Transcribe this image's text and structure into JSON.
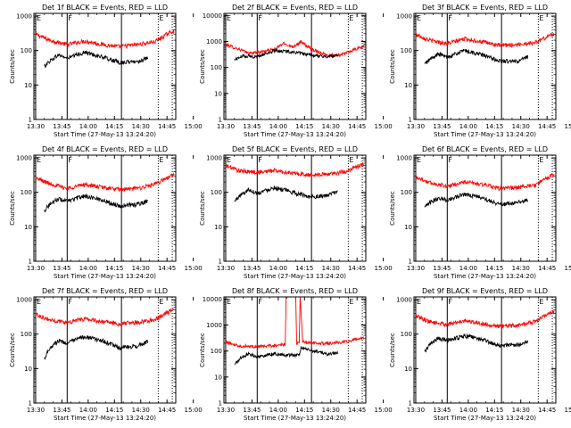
{
  "chart_data": [
    {
      "type": "line",
      "title": "Det 1f BLACK = Events, RED = LLD",
      "xlabel": "Start Time (27-May-13 13:24:20)",
      "ylabel": "Counts/sec",
      "x_ticks": [
        "13:30",
        "13:45",
        "14:00",
        "14:15",
        "14:30",
        "14:45",
        "15:00"
      ],
      "xlim_min": [
        21,
        102
      ],
      "y_ticks": [
        "1",
        "10",
        "100",
        "1000"
      ],
      "ylim": [
        1,
        1200
      ],
      "log_y": true,
      "markers": [
        {
          "label": "E",
          "t": 22,
          "style": "solid"
        },
        {
          "label": "F",
          "t": 40,
          "style": "solid"
        },
        {
          "label": "",
          "t": 71,
          "style": "solid"
        },
        {
          "label": "E",
          "t": 92,
          "style": "dotted"
        },
        {
          "label": "",
          "t": 100,
          "style": "dotted"
        }
      ],
      "series": [
        {
          "color": "#ff0000",
          "x": [
            22,
            30,
            40,
            50,
            60,
            70,
            80,
            90,
            97,
            101
          ],
          "values": [
            300,
            200,
            150,
            190,
            150,
            130,
            150,
            180,
            300,
            380
          ]
        },
        {
          "color": "#000000",
          "x": [
            27,
            30,
            35,
            40,
            50,
            60,
            70,
            80,
            86
          ],
          "values": [
            35,
            50,
            75,
            60,
            90,
            65,
            45,
            48,
            60
          ]
        }
      ]
    },
    {
      "type": "line",
      "title": "Det 2f BLACK = Events, RED = LLD",
      "xlabel": "Start Time (27-May-13 13:24:20)",
      "ylabel": "Counts/sec",
      "x_ticks": [
        "13:30",
        "13:45",
        "14:00",
        "14:15",
        "14:30",
        "14:45",
        "15:00"
      ],
      "xlim_min": [
        21,
        102
      ],
      "y_ticks": [
        "1",
        "10",
        "100",
        "1000",
        "10000"
      ],
      "ylim": [
        1,
        12000
      ],
      "log_y": true,
      "markers": [
        {
          "label": "E",
          "t": 22,
          "style": "solid"
        },
        {
          "label": "F",
          "t": 40,
          "style": "solid"
        },
        {
          "label": "",
          "t": 71,
          "style": "solid"
        },
        {
          "label": "E",
          "t": 92,
          "style": "dotted"
        },
        {
          "label": "",
          "t": 100,
          "style": "dotted"
        }
      ],
      "series": [
        {
          "color": "#ff0000",
          "x": [
            22,
            30,
            35,
            40,
            50,
            55,
            60,
            65,
            70,
            75,
            80,
            88,
            96,
            101
          ],
          "values": [
            750,
            500,
            350,
            380,
            500,
            850,
            620,
            950,
            560,
            400,
            300,
            300,
            500,
            650
          ]
        },
        {
          "color": "#000000",
          "x": [
            27,
            32,
            40,
            50,
            60,
            70,
            80,
            86
          ],
          "values": [
            200,
            280,
            260,
            450,
            400,
            300,
            260,
            300
          ]
        }
      ]
    },
    {
      "type": "line",
      "title": "Det 3f BLACK = Events, RED = LLD",
      "xlabel": "Start Time (27-May-13 13:24:20)",
      "ylabel": "Counts/sec",
      "x_ticks": [
        "13:30",
        "13:45",
        "14:00",
        "14:15",
        "14:30",
        "14:45",
        "15:00"
      ],
      "xlim_min": [
        21,
        102
      ],
      "y_ticks": [
        "1",
        "10",
        "100",
        "1000"
      ],
      "ylim": [
        1,
        1200
      ],
      "log_y": true,
      "markers": [
        {
          "label": "E",
          "t": 22,
          "style": "solid"
        },
        {
          "label": "F",
          "t": 40,
          "style": "solid"
        },
        {
          "label": "",
          "t": 71,
          "style": "solid"
        },
        {
          "label": "E",
          "t": 92,
          "style": "dotted"
        },
        {
          "label": "",
          "t": 100,
          "style": "dotted"
        }
      ],
      "series": [
        {
          "color": "#ff0000",
          "x": [
            22,
            30,
            40,
            50,
            60,
            70,
            80,
            90,
            97,
            101
          ],
          "values": [
            300,
            200,
            160,
            220,
            180,
            140,
            150,
            170,
            250,
            320
          ]
        },
        {
          "color": "#000000",
          "x": [
            27,
            30,
            35,
            40,
            50,
            60,
            70,
            80,
            86
          ],
          "values": [
            40,
            55,
            80,
            65,
            100,
            75,
            50,
            48,
            65
          ]
        }
      ]
    },
    {
      "type": "line",
      "title": "Det 4f BLACK = Events, RED = LLD",
      "xlabel": "Start Time (27-May-13 13:24:20)",
      "ylabel": "Counts/sec",
      "x_ticks": [
        "13:30",
        "13:45",
        "14:00",
        "14:15",
        "14:30",
        "14:45",
        "15:00"
      ],
      "xlim_min": [
        21,
        102
      ],
      "y_ticks": [
        "1",
        "10",
        "100",
        "1000"
      ],
      "ylim": [
        1,
        1200
      ],
      "log_y": true,
      "markers": [
        {
          "label": "E",
          "t": 22,
          "style": "solid"
        },
        {
          "label": "F",
          "t": 40,
          "style": "solid"
        },
        {
          "label": "",
          "t": 71,
          "style": "solid"
        },
        {
          "label": "E",
          "t": 92,
          "style": "dotted"
        },
        {
          "label": "",
          "t": 100,
          "style": "dotted"
        }
      ],
      "series": [
        {
          "color": "#ff0000",
          "x": [
            22,
            30,
            40,
            50,
            60,
            70,
            80,
            90,
            97,
            101
          ],
          "values": [
            260,
            180,
            130,
            170,
            140,
            120,
            130,
            170,
            260,
            330
          ]
        },
        {
          "color": "#000000",
          "x": [
            27,
            30,
            35,
            40,
            50,
            60,
            70,
            80,
            86
          ],
          "values": [
            30,
            45,
            65,
            55,
            80,
            60,
            40,
            45,
            55
          ]
        }
      ]
    },
    {
      "type": "line",
      "title": "Det 5f BLACK = Events, RED = LLD",
      "xlabel": "Start Time (27-May-13 13:24:20)",
      "ylabel": "Counts/sec",
      "x_ticks": [
        "13:30",
        "13:45",
        "14:00",
        "14:15",
        "14:30",
        "14:45",
        "15:00"
      ],
      "xlim_min": [
        21,
        102
      ],
      "y_ticks": [
        "1",
        "10",
        "100",
        "1000"
      ],
      "ylim": [
        1,
        1200
      ],
      "log_y": true,
      "markers": [
        {
          "label": "E",
          "t": 22,
          "style": "solid"
        },
        {
          "label": "F",
          "t": 40,
          "style": "solid"
        },
        {
          "label": "",
          "t": 71,
          "style": "solid"
        },
        {
          "label": "E",
          "t": 92,
          "style": "dotted"
        },
        {
          "label": "",
          "t": 100,
          "style": "dotted"
        }
      ],
      "series": [
        {
          "color": "#ff0000",
          "x": [
            22,
            30,
            40,
            50,
            60,
            70,
            80,
            90,
            97,
            101
          ],
          "values": [
            600,
            420,
            380,
            430,
            360,
            320,
            340,
            400,
            560,
            650
          ]
        },
        {
          "color": "#000000",
          "x": [
            27,
            30,
            35,
            40,
            50,
            60,
            70,
            80,
            86
          ],
          "values": [
            55,
            80,
            120,
            95,
            140,
            100,
            75,
            80,
            110
          ]
        }
      ]
    },
    {
      "type": "line",
      "title": "Det 6f BLACK = Events, RED = LLD",
      "xlabel": "Start Time (27-May-13 13:24:20)",
      "ylabel": "Counts/sec",
      "x_ticks": [
        "13:30",
        "13:45",
        "14:00",
        "14:15",
        "14:30",
        "14:45",
        "15:00"
      ],
      "xlim_min": [
        21,
        102
      ],
      "y_ticks": [
        "1",
        "10",
        "100",
        "1000"
      ],
      "ylim": [
        1,
        1200
      ],
      "log_y": true,
      "markers": [
        {
          "label": "E",
          "t": 22,
          "style": "solid"
        },
        {
          "label": "F",
          "t": 40,
          "style": "solid"
        },
        {
          "label": "",
          "t": 71,
          "style": "solid"
        },
        {
          "label": "E",
          "t": 92,
          "style": "dotted"
        },
        {
          "label": "",
          "t": 100,
          "style": "dotted"
        }
      ],
      "series": [
        {
          "color": "#ff0000",
          "x": [
            22,
            30,
            40,
            50,
            60,
            70,
            80,
            90,
            97,
            101
          ],
          "values": [
            280,
            190,
            150,
            200,
            170,
            130,
            140,
            160,
            260,
            340
          ]
        },
        {
          "color": "#000000",
          "x": [
            27,
            30,
            35,
            40,
            50,
            60,
            70,
            80,
            86
          ],
          "values": [
            35,
            50,
            70,
            60,
            90,
            70,
            45,
            50,
            60
          ]
        }
      ]
    },
    {
      "type": "line",
      "title": "Det 7f BLACK = Events, RED = LLD",
      "xlabel": "Start Time (27-May-13 13:24:20)",
      "ylabel": "Counts/sec",
      "x_ticks": [
        "13:30",
        "13:45",
        "14:00",
        "14:15",
        "14:30",
        "14:45",
        "15:00"
      ],
      "xlim_min": [
        21,
        102
      ],
      "y_ticks": [
        "1",
        "10",
        "100",
        "1000"
      ],
      "ylim": [
        1,
        1200
      ],
      "log_y": true,
      "markers": [
        {
          "label": "E",
          "t": 22,
          "style": "solid"
        },
        {
          "label": "F",
          "t": 40,
          "style": "solid"
        },
        {
          "label": "",
          "t": 71,
          "style": "solid"
        },
        {
          "label": "E",
          "t": 92,
          "style": "dotted"
        },
        {
          "label": "",
          "t": 100,
          "style": "dotted"
        }
      ],
      "series": [
        {
          "color": "#ff0000",
          "x": [
            22,
            30,
            40,
            50,
            60,
            70,
            80,
            90,
            97,
            101
          ],
          "values": [
            380,
            260,
            220,
            280,
            230,
            200,
            220,
            260,
            420,
            500
          ]
        },
        {
          "color": "#000000",
          "x": [
            27,
            30,
            35,
            40,
            50,
            60,
            70,
            80,
            86
          ],
          "values": [
            20,
            40,
            65,
            55,
            85,
            65,
            40,
            45,
            60
          ]
        }
      ]
    },
    {
      "type": "line",
      "title": "Det 8f BLACK = Events, RED = LLD",
      "xlabel": "Start Time (27-May-13 13:24:20)",
      "ylabel": "Counts/sec",
      "x_ticks": [
        "13:30",
        "13:45",
        "14:00",
        "14:15",
        "14:30",
        "14:45",
        "15:00"
      ],
      "xlim_min": [
        21,
        102
      ],
      "y_ticks": [
        "1",
        "10",
        "100",
        "1000",
        "10000"
      ],
      "ylim": [
        1,
        12000
      ],
      "log_y": true,
      "markers": [
        {
          "label": "E",
          "t": 22,
          "style": "solid"
        },
        {
          "label": "F",
          "t": 40,
          "style": "solid"
        },
        {
          "label": "",
          "t": 71,
          "style": "solid"
        },
        {
          "label": "E",
          "t": 92,
          "style": "dotted"
        },
        {
          "label": "",
          "t": 100,
          "style": "dotted"
        }
      ],
      "series": [
        {
          "color": "#ff0000",
          "x": [
            22,
            30,
            40,
            50,
            56,
            56.5,
            62,
            62.5,
            64,
            64.5,
            66,
            70,
            80,
            90,
            97,
            101
          ],
          "values": [
            220,
            160,
            150,
            160,
            180,
            12000,
            12000,
            190,
            210,
            12000,
            220,
            210,
            200,
            220,
            300,
            330
          ]
        },
        {
          "color": "#000000",
          "x": [
            27,
            30,
            35,
            40,
            50,
            55,
            64,
            65,
            70,
            80,
            86
          ],
          "values": [
            30,
            50,
            80,
            60,
            80,
            70,
            70,
            130,
            110,
            75,
            90
          ]
        }
      ]
    },
    {
      "type": "line",
      "title": "Det 9f BLACK = Events, RED = LLD",
      "xlabel": "Start Time (27-May-13 13:24:20)",
      "ylabel": "Counts/sec",
      "x_ticks": [
        "13:30",
        "13:45",
        "14:00",
        "14:15",
        "14:30",
        "14:45",
        "15:00"
      ],
      "xlim_min": [
        21,
        102
      ],
      "y_ticks": [
        "1",
        "10",
        "100",
        "1000"
      ],
      "ylim": [
        1,
        1200
      ],
      "log_y": true,
      "markers": [
        {
          "label": "E",
          "t": 22,
          "style": "solid"
        },
        {
          "label": "F",
          "t": 40,
          "style": "solid"
        },
        {
          "label": "",
          "t": 71,
          "style": "solid"
        },
        {
          "label": "E",
          "t": 92,
          "style": "dotted"
        },
        {
          "label": "",
          "t": 100,
          "style": "dotted"
        }
      ],
      "series": [
        {
          "color": "#ff0000",
          "x": [
            22,
            30,
            40,
            50,
            60,
            70,
            80,
            90,
            97,
            101
          ],
          "values": [
            340,
            230,
            190,
            250,
            200,
            170,
            180,
            230,
            380,
            450
          ]
        },
        {
          "color": "#000000",
          "x": [
            27,
            30,
            35,
            40,
            50,
            60,
            70,
            80,
            86
          ],
          "values": [
            30,
            50,
            75,
            65,
            90,
            70,
            45,
            50,
            60
          ]
        }
      ]
    }
  ]
}
